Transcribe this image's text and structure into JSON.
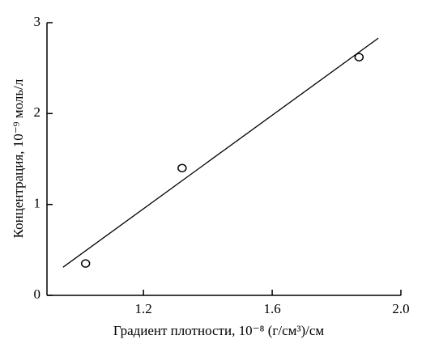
{
  "chart_data": {
    "type": "scatter",
    "x_label": "Градиент плотности, 10⁻⁸ (г/см³)/см",
    "y_label": "Концентрация, 10⁻⁹ моль/л",
    "series": [
      {
        "type": "scatter",
        "x": [
          1.02,
          1.32,
          1.87
        ],
        "values": [
          0.35,
          1.4,
          2.62
        ],
        "color": "#000000"
      },
      {
        "type": "line",
        "x": [
          0.95,
          1.93
        ],
        "values": [
          0.31,
          2.83
        ],
        "color": "#000000"
      }
    ],
    "xlim": [
      0.9,
      2.0
    ],
    "xticks": [
      1.2,
      1.6,
      {
        "value": 2,
        "label": "2.0"
      }
    ],
    "ylim": [
      0,
      3
    ],
    "yticks": [
      0,
      1,
      2,
      3
    ],
    "grid": false
  }
}
